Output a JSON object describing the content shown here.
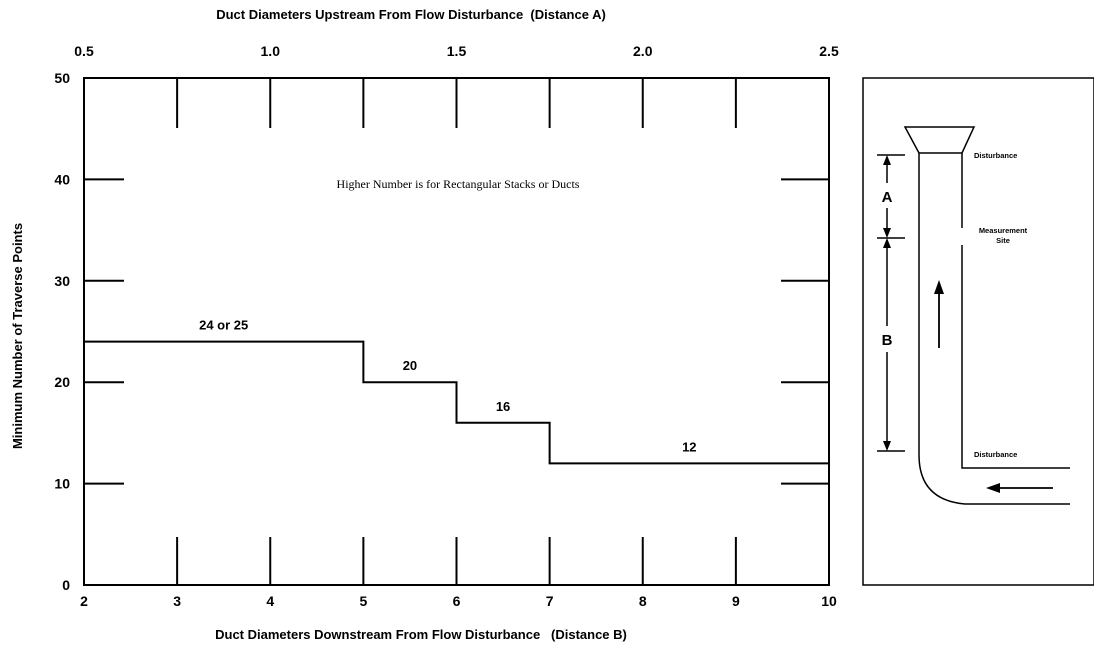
{
  "chart_data": {
    "type": "line",
    "subtype": "step",
    "xlabel_top": "Duct Diameters Upstream From Flow Disturbance  (Distance A)",
    "xlabel_bottom": "Duct Diameters Downstream From Flow Disturbance   (Distance B)",
    "ylabel": "Minimum Number of Traverse Points",
    "xlim_bottom": [
      2,
      10
    ],
    "xlim_top": [
      0.5,
      2.5
    ],
    "ylim": [
      0,
      50
    ],
    "x_ticks_bottom": [
      "2",
      "3",
      "4",
      "5",
      "6",
      "7",
      "8",
      "9",
      "10"
    ],
    "x_ticks_top": [
      "0.5",
      "1.0",
      "1.5",
      "2.0",
      "2.5"
    ],
    "y_ticks": [
      "0",
      "10",
      "20",
      "30",
      "40",
      "50"
    ],
    "grid": false,
    "note": "Higher Number is for Rectangular Stacks or Ducts",
    "series": [
      {
        "x": [
          2,
          5,
          5,
          6,
          6,
          7,
          7,
          10
        ],
        "y": [
          24,
          24,
          20,
          20,
          16,
          16,
          12,
          12
        ]
      }
    ],
    "step_labels": [
      {
        "text": "24 or 25",
        "x": 3.5,
        "y": 24
      },
      {
        "text": "20",
        "x": 5.5,
        "y": 20
      },
      {
        "text": "16",
        "x": 6.5,
        "y": 16
      },
      {
        "text": "12",
        "x": 8.5,
        "y": 12
      }
    ]
  },
  "diagram": {
    "label_a": "A",
    "label_b": "B",
    "disturbance_top": "Disturbance",
    "measurement_site_line1": "Measurement",
    "measurement_site_line2": "Site",
    "disturbance_bottom": "Disturbance"
  },
  "colors": {
    "line": "#000000",
    "background": "#ffffff"
  }
}
